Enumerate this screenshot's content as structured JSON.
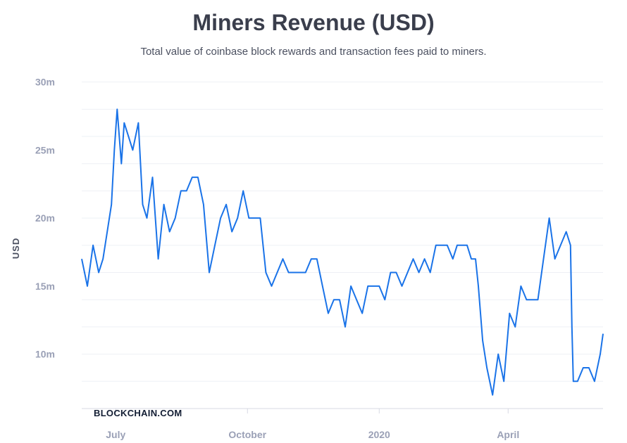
{
  "chart_data": {
    "type": "line",
    "title": "Miners Revenue (USD)",
    "subtitle": "Total value of coinbase block rewards and transaction fees paid to miners.",
    "ylabel": "USD",
    "xlabel": "",
    "watermark": "BLOCKCHAIN.COM",
    "ylim": [
      6,
      30.5
    ],
    "yticks": [
      {
        "value": 10,
        "label": "10m"
      },
      {
        "value": 15,
        "label": "15m"
      },
      {
        "value": 20,
        "label": "20m"
      },
      {
        "value": 25,
        "label": "25m"
      },
      {
        "value": 30,
        "label": "30m"
      }
    ],
    "xlim": [
      0,
      368
    ],
    "xticks": [
      {
        "value": 24,
        "label": "July"
      },
      {
        "value": 117,
        "label": "October"
      },
      {
        "value": 210,
        "label": "2020"
      },
      {
        "value": 301,
        "label": "April"
      }
    ],
    "grid": true,
    "line_color": "#1a73e8",
    "series": [
      {
        "name": "Miners Revenue (USD)",
        "x": [
          0,
          4,
          8,
          12,
          15,
          18,
          21,
          23,
          25,
          28,
          30,
          33,
          36,
          40,
          43,
          46,
          50,
          54,
          58,
          62,
          66,
          70,
          74,
          78,
          82,
          86,
          90,
          94,
          98,
          102,
          106,
          110,
          114,
          118,
          122,
          126,
          130,
          134,
          138,
          142,
          146,
          150,
          154,
          158,
          162,
          166,
          170,
          174,
          178,
          182,
          186,
          190,
          194,
          198,
          202,
          206,
          210,
          214,
          218,
          222,
          226,
          230,
          234,
          238,
          242,
          246,
          250,
          254,
          258,
          262,
          265,
          268,
          272,
          275,
          278,
          280,
          283,
          286,
          290,
          294,
          298,
          302,
          306,
          310,
          314,
          318,
          322,
          326,
          330,
          334,
          338,
          342,
          345,
          346,
          347,
          350,
          354,
          358,
          362,
          366,
          368
        ],
        "values": [
          17,
          15,
          18,
          16,
          17,
          19,
          21,
          25,
          28,
          24,
          27,
          26,
          25,
          27,
          21,
          20,
          23,
          17,
          21,
          19,
          20,
          22,
          22,
          23,
          23,
          21,
          16,
          18,
          20,
          21,
          19,
          20,
          22,
          20,
          20,
          20,
          16,
          15,
          16,
          17,
          16,
          16,
          16,
          16,
          17,
          17,
          15,
          13,
          14,
          14,
          12,
          15,
          14,
          13,
          15,
          15,
          15,
          14,
          16,
          16,
          15,
          16,
          17,
          16,
          17,
          16,
          18,
          18,
          18,
          17,
          18,
          18,
          18,
          17,
          17,
          15,
          11,
          9,
          7,
          10,
          8,
          13,
          12,
          15,
          14,
          14,
          14,
          17,
          20,
          17,
          18,
          19,
          18,
          12,
          8,
          8,
          9,
          9,
          8,
          10,
          11.5
        ]
      }
    ]
  }
}
